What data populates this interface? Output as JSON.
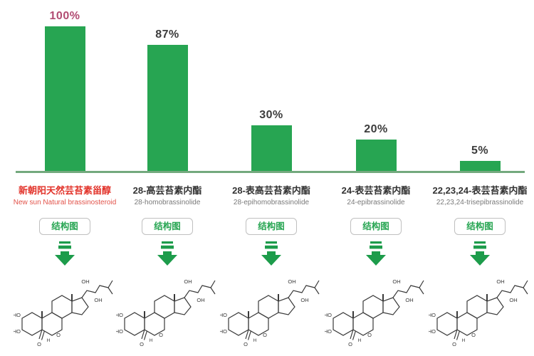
{
  "chart_data": {
    "type": "bar",
    "title": "",
    "categories_cn": [
      "新朝阳天然芸苔素甾醇",
      "28-高芸苔素内酯",
      "28-表高芸苔素内酯",
      "24-表芸苔素内酯",
      "22,23,24-表芸苔素内酯"
    ],
    "categories_en": [
      "New sun Natural brassinosteroid",
      "28-homobrassinolide",
      "28-epihomobrassinolide",
      "24-epibrassinolide",
      "22,23,24-trisepibrassinolide"
    ],
    "values": [
      100,
      87,
      30,
      20,
      5
    ],
    "value_labels": [
      "100%",
      "87%",
      "30%",
      "20%",
      "5%"
    ],
    "ylim": [
      0,
      100
    ],
    "grid": false,
    "legend": false,
    "bar_color": "#27a552",
    "baseline_color": "#74a97e",
    "highlight_index": 0,
    "highlight_value_color": "#b14c72",
    "highlight_category_color": "#e2332a",
    "value_label_color": "#3c3c3c",
    "category_color": "#333333",
    "subcategory_color": "#7a7a7a"
  },
  "ui": {
    "structure_button_label": "结构图",
    "button_text_color": "#27a552",
    "button_border_color": "#c0c0c0",
    "arrow_color": "#1d9c4b"
  },
  "structure_labels": {
    "ho": "HO",
    "oh": "OH",
    "o": "O",
    "h": "H"
  }
}
